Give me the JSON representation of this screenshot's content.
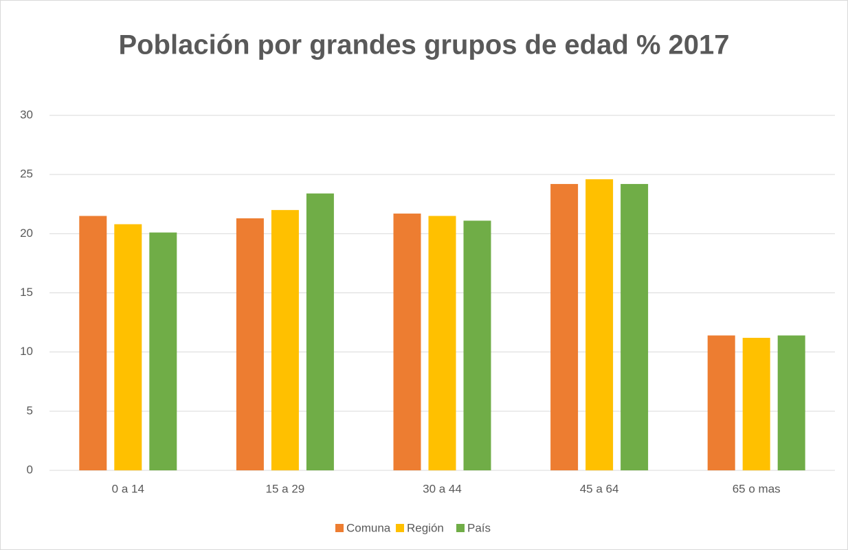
{
  "chart_data": {
    "type": "bar",
    "title": "Población por grandes grupos de edad % 2017",
    "categories": [
      "0 a 14",
      "15 a 29",
      "30 a 44",
      "45 a 64",
      "65 o mas"
    ],
    "series": [
      {
        "name": "Comuna",
        "color": "#ed7d31",
        "values": [
          21.5,
          21.3,
          21.7,
          24.2,
          11.4
        ]
      },
      {
        "name": "Región",
        "color": "#ffc000",
        "values": [
          20.8,
          22.0,
          21.5,
          24.6,
          11.2
        ]
      },
      {
        "name": "País",
        "color": "#70ad47",
        "values": [
          20.1,
          23.4,
          21.1,
          24.2,
          11.4
        ]
      }
    ],
    "ylim": [
      0,
      30
    ],
    "yticks": [
      0,
      5,
      10,
      15,
      20,
      25,
      30
    ],
    "grid": true,
    "legend": "bottom"
  }
}
